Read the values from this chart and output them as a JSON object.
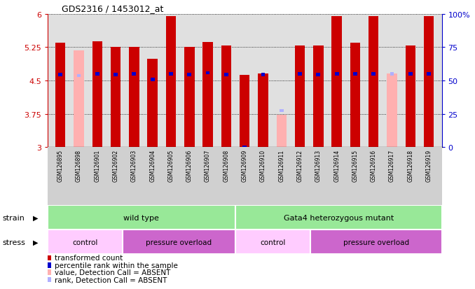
{
  "title": "GDS2316 / 1453012_at",
  "samples": [
    "GSM126895",
    "GSM126898",
    "GSM126901",
    "GSM126902",
    "GSM126903",
    "GSM126904",
    "GSM126905",
    "GSM126906",
    "GSM126907",
    "GSM126908",
    "GSM126909",
    "GSM126910",
    "GSM126911",
    "GSM126912",
    "GSM126913",
    "GSM126914",
    "GSM126915",
    "GSM126916",
    "GSM126917",
    "GSM126918",
    "GSM126919"
  ],
  "bar_values": [
    5.35,
    null,
    5.38,
    5.25,
    5.26,
    4.98,
    5.95,
    5.25,
    5.36,
    5.29,
    4.62,
    4.65,
    null,
    5.28,
    5.29,
    5.95,
    5.35,
    5.95,
    null,
    5.28,
    5.95
  ],
  "absent_values": [
    null,
    5.18,
    null,
    null,
    null,
    null,
    null,
    null,
    null,
    null,
    null,
    null,
    3.72,
    null,
    null,
    null,
    null,
    null,
    4.65,
    null,
    null
  ],
  "rank_values": [
    4.63,
    null,
    4.65,
    4.63,
    4.65,
    4.52,
    4.65,
    4.63,
    4.67,
    4.63,
    3.0,
    4.63,
    null,
    4.65,
    4.63,
    4.65,
    4.65,
    4.65,
    null,
    4.65,
    4.65
  ],
  "absent_rank_values": [
    null,
    4.61,
    null,
    null,
    null,
    null,
    null,
    null,
    null,
    null,
    null,
    null,
    3.82,
    null,
    null,
    null,
    null,
    null,
    4.65,
    null,
    null
  ],
  "ylim": [
    3.0,
    6.0
  ],
  "yticks": [
    3.0,
    3.75,
    4.5,
    5.25,
    6.0
  ],
  "ytick_labels": [
    "3",
    "3.75",
    "4.5",
    "5.25",
    "6"
  ],
  "right_yticks": [
    0,
    25,
    50,
    75,
    100
  ],
  "right_ytick_labels": [
    "0",
    "25",
    "50",
    "75",
    "100%"
  ],
  "bar_color": "#cc0000",
  "absent_bar_color": "#ffb0b0",
  "rank_color": "#0000cc",
  "absent_rank_color": "#b0b0ff",
  "bar_width": 0.55,
  "rank_bar_width": 0.22,
  "background_color": "#ffffff",
  "plot_bg_color": "#e0e0e0",
  "axis_color_left": "#cc0000",
  "axis_color_right": "#0000cc",
  "legend_items": [
    {
      "label": "transformed count",
      "color": "#cc0000"
    },
    {
      "label": "percentile rank within the sample",
      "color": "#0000cc"
    },
    {
      "label": "value, Detection Call = ABSENT",
      "color": "#ffb0b0"
    },
    {
      "label": "rank, Detection Call = ABSENT",
      "color": "#b0b0ff"
    }
  ]
}
